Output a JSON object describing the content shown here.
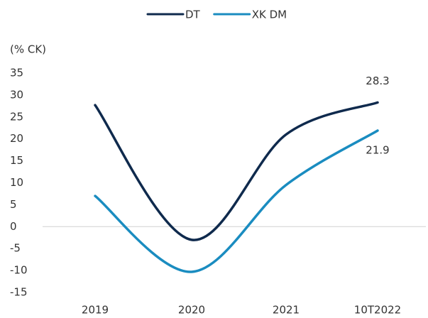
{
  "chart_data": {
    "type": "line",
    "y_label": "(% CK)",
    "categories": [
      "2019",
      "2020",
      "2021",
      "10T2022"
    ],
    "series": [
      {
        "name": "DT",
        "color": "#0f2a4d",
        "values": [
          27.7,
          -3,
          21,
          28.3
        ]
      },
      {
        "name": "XK DM",
        "color": "#1a8cc0",
        "values": [
          7,
          -10.3,
          9.5,
          21.9
        ]
      }
    ],
    "ylim": [
      -15,
      35
    ],
    "yticks": [
      -15,
      -10,
      -5,
      0,
      5,
      10,
      15,
      20,
      25,
      30,
      35
    ],
    "smooth": true,
    "legend": "top"
  }
}
